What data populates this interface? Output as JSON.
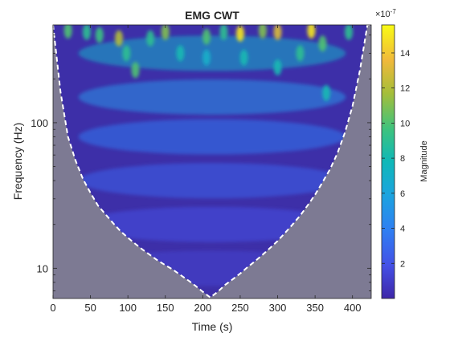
{
  "chart_data": {
    "type": "heatmap",
    "title": "EMG CWT",
    "xlabel": "Time (s)",
    "ylabel": "Frequency (Hz)",
    "xlim": [
      0,
      425
    ],
    "ylim": [
      6.2,
      470
    ],
    "y_scale": "log",
    "x_ticks": [
      0,
      50,
      100,
      150,
      200,
      250,
      300,
      350,
      400
    ],
    "y_ticks": [
      10,
      100
    ],
    "colorbar": {
      "label": "Magnitude",
      "exponent_label": "×10",
      "exponent": "-7",
      "range": [
        0.0,
        15.6
      ],
      "ticks": [
        2,
        4,
        6,
        8,
        10,
        12,
        14
      ],
      "colormap": "parula"
    },
    "cone_of_influence": {
      "style": "white dashed",
      "fill": "#7d7a93",
      "x": [
        0,
        10,
        20,
        30,
        40,
        50,
        60,
        70,
        80,
        90,
        100,
        110,
        120,
        130,
        140,
        150,
        160,
        170,
        180,
        190,
        200,
        210,
        220,
        230,
        240,
        250,
        260,
        270,
        280,
        290,
        300,
        310,
        320,
        330,
        340,
        350,
        360,
        370,
        380,
        390,
        400,
        410,
        420,
        425
      ],
      "freq_hz": [
        470,
        163,
        80,
        55,
        41,
        33,
        27,
        23.5,
        20.5,
        18,
        16.2,
        14.7,
        13.4,
        12.3,
        11.3,
        10.5,
        9.8,
        9.0,
        8.3,
        7.6,
        6.9,
        6.3,
        6.9,
        7.7,
        8.4,
        9.2,
        10.2,
        11.2,
        12.4,
        13.8,
        15.4,
        17.5,
        20,
        23,
        27,
        32,
        39,
        48,
        62,
        86,
        130,
        230,
        470,
        470
      ]
    },
    "energy_bands": [
      {
        "freq_hz": 300,
        "magnitude": 7.0
      },
      {
        "freq_hz": 150,
        "magnitude": 5.0
      },
      {
        "freq_hz": 80,
        "magnitude": 3.6
      },
      {
        "freq_hz": 40,
        "magnitude": 2.6
      },
      {
        "freq_hz": 20,
        "magnitude": 1.8
      },
      {
        "freq_hz": 10,
        "magnitude": 1.2
      }
    ],
    "peak_bursts": [
      {
        "x": 20,
        "y": 430,
        "magnitude": 10
      },
      {
        "x": 45,
        "y": 420,
        "magnitude": 9
      },
      {
        "x": 62,
        "y": 400,
        "magnitude": 9.5
      },
      {
        "x": 88,
        "y": 380,
        "magnitude": 12
      },
      {
        "x": 98,
        "y": 300,
        "magnitude": 9
      },
      {
        "x": 110,
        "y": 230,
        "magnitude": 10
      },
      {
        "x": 130,
        "y": 380,
        "magnitude": 9
      },
      {
        "x": 150,
        "y": 420,
        "magnitude": 11
      },
      {
        "x": 170,
        "y": 300,
        "magnitude": 8
      },
      {
        "x": 205,
        "y": 390,
        "magnitude": 10
      },
      {
        "x": 205,
        "y": 280,
        "magnitude": 7
      },
      {
        "x": 228,
        "y": 420,
        "magnitude": 9
      },
      {
        "x": 250,
        "y": 410,
        "magnitude": 15
      },
      {
        "x": 255,
        "y": 280,
        "magnitude": 8
      },
      {
        "x": 280,
        "y": 430,
        "magnitude": 11
      },
      {
        "x": 300,
        "y": 420,
        "magnitude": 13
      },
      {
        "x": 300,
        "y": 240,
        "magnitude": 8
      },
      {
        "x": 330,
        "y": 300,
        "magnitude": 9
      },
      {
        "x": 345,
        "y": 430,
        "magnitude": 15
      },
      {
        "x": 360,
        "y": 350,
        "magnitude": 10
      },
      {
        "x": 365,
        "y": 160,
        "magnitude": 8
      },
      {
        "x": 395,
        "y": 420,
        "magnitude": 9
      }
    ]
  },
  "colors": {
    "background_low": "#3d2fa8",
    "coi_shade": "#7d7a93",
    "text": "#262626",
    "axes": "#262626"
  }
}
